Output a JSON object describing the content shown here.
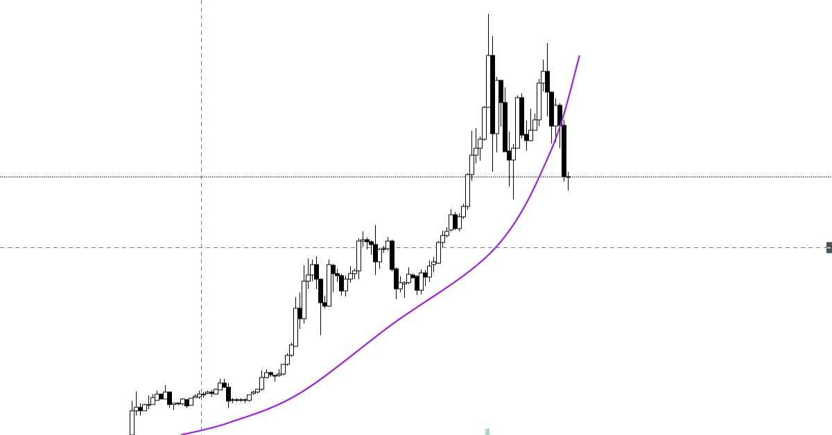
{
  "chart_data": {
    "type": "candlestick",
    "title": "",
    "xlabel": "",
    "ylabel": "",
    "ylim": [
      0,
      628
    ],
    "grid": false,
    "colors": {
      "bull_body": "#ffffff",
      "bear_body": "#000000",
      "outline": "#000000",
      "curve": "#9b1cf5",
      "crosshair": "#6a7f92",
      "price_line": "#000000",
      "crosshair_marker": "#4a525c",
      "bottom_marker": "#a8d8c8"
    },
    "candles_ohlc": [
      [
        0,
        49,
        0,
        35
      ],
      [
        35,
        63,
        28,
        40
      ],
      [
        40,
        46,
        28,
        35
      ],
      [
        35,
        45,
        35,
        44
      ],
      [
        44,
        57,
        37,
        44
      ],
      [
        44,
        59,
        44,
        54
      ],
      [
        50,
        64,
        50,
        59
      ],
      [
        59,
        60,
        52,
        52
      ],
      [
        52,
        72,
        52,
        62
      ],
      [
        62,
        63,
        39,
        44
      ],
      [
        44,
        46,
        36,
        46
      ],
      [
        45,
        47,
        43,
        46
      ],
      [
        45,
        53,
        43,
        52
      ],
      [
        51,
        52,
        39,
        42
      ],
      [
        43,
        53,
        43,
        53
      ],
      [
        54,
        59,
        54,
        56
      ],
      [
        55,
        64,
        52,
        59
      ],
      [
        59,
        62,
        54,
        59
      ],
      [
        60,
        64,
        59,
        62
      ],
      [
        62,
        65,
        55,
        60
      ],
      [
        59,
        67,
        59,
        66
      ],
      [
        65,
        81,
        65,
        75
      ],
      [
        75,
        81,
        68,
        69
      ],
      [
        69,
        75,
        39,
        49
      ],
      [
        51,
        53,
        46,
        51
      ],
      [
        51,
        53,
        48,
        51
      ],
      [
        51,
        53,
        48,
        51
      ],
      [
        51,
        53,
        46,
        51
      ],
      [
        50,
        58,
        48,
        58
      ],
      [
        60,
        64,
        58,
        62
      ],
      [
        62,
        66,
        60,
        66
      ],
      [
        66,
        93,
        64,
        83
      ],
      [
        83,
        95,
        82,
        90
      ],
      [
        90,
        92,
        84,
        87
      ],
      [
        86,
        87,
        77,
        85
      ],
      [
        86,
        95,
        84,
        88
      ],
      [
        88,
        102,
        86,
        102
      ],
      [
        102,
        118,
        100,
        115
      ],
      [
        115,
        133,
        113,
        130
      ],
      [
        128,
        199,
        128,
        183
      ],
      [
        183,
        206,
        153,
        168
      ],
      [
        168,
        245,
        161,
        222
      ],
      [
        222,
        255,
        211,
        231
      ],
      [
        231,
        253,
        222,
        246
      ],
      [
        246,
        258,
        211,
        225
      ],
      [
        225,
        226,
        144,
        191
      ],
      [
        191,
        201,
        183,
        186
      ],
      [
        186,
        253,
        185,
        246
      ],
      [
        245,
        247,
        206,
        233
      ],
      [
        233,
        240,
        221,
        230
      ],
      [
        230,
        233,
        201,
        208
      ],
      [
        208,
        230,
        200,
        225
      ],
      [
        225,
        244,
        220,
        233
      ],
      [
        233,
        240,
        225,
        237
      ],
      [
        237,
        284,
        225,
        280
      ],
      [
        280,
        294,
        272,
        282
      ],
      [
        282,
        285,
        268,
        279
      ],
      [
        279,
        281,
        260,
        275
      ],
      [
        275,
        303,
        231,
        250
      ],
      [
        250,
        270,
        240,
        268
      ],
      [
        268,
        273,
        263,
        269
      ],
      [
        269,
        286,
        266,
        280
      ],
      [
        280,
        282,
        236,
        239
      ],
      [
        240,
        242,
        196,
        211
      ],
      [
        211,
        229,
        206,
        220
      ],
      [
        218,
        222,
        198,
        220
      ],
      [
        220,
        242,
        218,
        232
      ],
      [
        231,
        233,
        226,
        227
      ],
      [
        229,
        231,
        202,
        209
      ],
      [
        209,
        239,
        203,
        234
      ],
      [
        234,
        238,
        215,
        228
      ],
      [
        228,
        252,
        221,
        244
      ],
      [
        246,
        257,
        235,
        250
      ],
      [
        248,
        280,
        247,
        278
      ],
      [
        278,
        295,
        271,
        288
      ],
      [
        288,
        300,
        285,
        294
      ],
      [
        296,
        326,
        294,
        318
      ],
      [
        318,
        322,
        296,
        298
      ],
      [
        298,
        320,
        294,
        315
      ],
      [
        315,
        334,
        312,
        330
      ],
      [
        330,
        378,
        325,
        376
      ],
      [
        376,
        439,
        367,
        404
      ],
      [
        404,
        443,
        392,
        414
      ],
      [
        414,
        431,
        396,
        427
      ],
      [
        427,
        475,
        425,
        473
      ],
      [
        473,
        608,
        473,
        548
      ],
      [
        548,
        576,
        380,
        435
      ],
      [
        435,
        517,
        408,
        512
      ],
      [
        512,
        512,
        445,
        480
      ],
      [
        480,
        502,
        410,
        409
      ],
      [
        410,
        438,
        359,
        397
      ],
      [
        397,
        420,
        340,
        414
      ],
      [
        414,
        490,
        414,
        487
      ],
      [
        487,
        493,
        428,
        433
      ],
      [
        434,
        454,
        410,
        425
      ],
      [
        425,
        471,
        424,
        440
      ],
      [
        440,
        464,
        440,
        455
      ],
      [
        455,
        514,
        446,
        508
      ],
      [
        508,
        542,
        496,
        525
      ],
      [
        525,
        566,
        460,
        495
      ],
      [
        495,
        496,
        421,
        446
      ],
      [
        446,
        486,
        423,
        476
      ],
      [
        476,
        479,
        414,
        447
      ],
      [
        447,
        455,
        366,
        373
      ],
      [
        373,
        380,
        353,
        373
      ]
    ],
    "curve": {
      "x": [
        11.7,
        23.3,
        40,
        61.7,
        86.7,
        100,
        106.8
      ],
      "y": [
        0,
        18,
        60,
        158,
        270,
        411,
        548
      ]
    },
    "current_price_line": 373,
    "crosshair": {
      "x_index": 16.5,
      "y_value": 271
    }
  }
}
